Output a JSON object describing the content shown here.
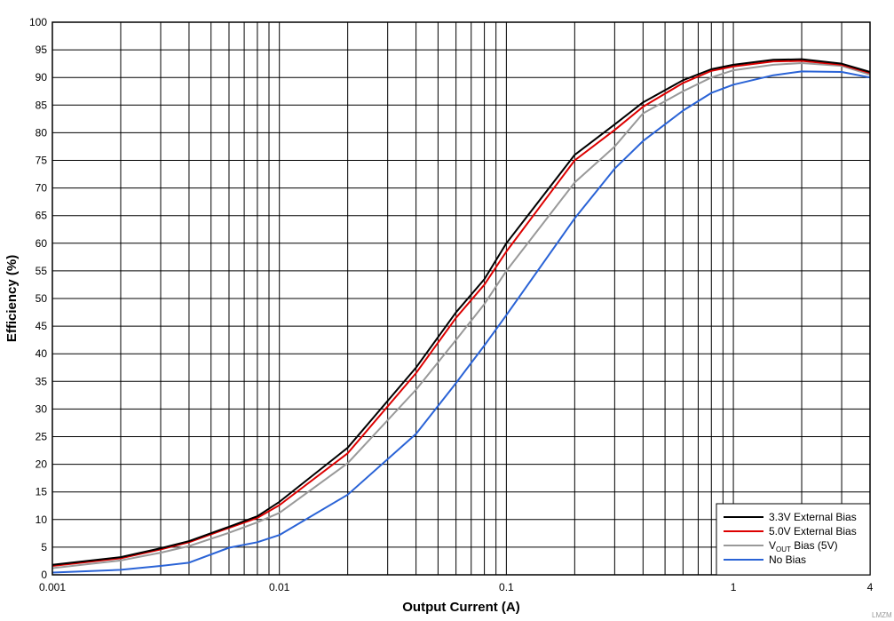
{
  "chart_data": {
    "type": "line",
    "xlabel": "Output Current (A)",
    "ylabel": "Efficiency (%)",
    "x_scale": "log",
    "xlim": [
      0.001,
      4
    ],
    "ylim": [
      0,
      100
    ],
    "x_ticks": [
      0.001,
      0.01,
      0.1,
      1,
      4
    ],
    "x_tick_labels": [
      "0.001",
      "0.01",
      "0.1",
      "1",
      "4"
    ],
    "y_ticks": [
      0,
      5,
      10,
      15,
      20,
      25,
      30,
      35,
      40,
      45,
      50,
      55,
      60,
      65,
      70,
      75,
      80,
      85,
      90,
      95,
      100
    ],
    "grid": true,
    "legend_position": "bottom-right",
    "watermark": "LMZM",
    "series": [
      {
        "name": "3.3V External Bias",
        "legend_main": "3.3V External Bias",
        "color": "#000000",
        "x": [
          0.001,
          0.002,
          0.003,
          0.004,
          0.006,
          0.008,
          0.01,
          0.02,
          0.04,
          0.06,
          0.08,
          0.1,
          0.2,
          0.3,
          0.4,
          0.6,
          0.8,
          1,
          1.5,
          2,
          3,
          4
        ],
        "y": [
          1.8,
          3.2,
          4.8,
          6.1,
          8.7,
          10.6,
          13.2,
          23,
          37.5,
          47.5,
          53.5,
          60,
          76,
          81.5,
          85.5,
          89.5,
          91.5,
          92.3,
          93.2,
          93.3,
          92.5,
          91
        ]
      },
      {
        "name": "5.0V External Bias",
        "legend_main": "5.0V External Bias",
        "color": "#dd0000",
        "x": [
          0.001,
          0.002,
          0.003,
          0.004,
          0.006,
          0.008,
          0.01,
          0.02,
          0.04,
          0.06,
          0.08,
          0.1,
          0.2,
          0.3,
          0.4,
          0.6,
          0.8,
          1,
          1.5,
          2,
          3,
          4
        ],
        "y": [
          1.6,
          3.0,
          4.6,
          5.9,
          8.5,
          10.3,
          12.6,
          22,
          36.5,
          46.5,
          52.5,
          58.5,
          75,
          80.5,
          84.7,
          89,
          91.2,
          92,
          92.9,
          93,
          92.3,
          90.8
        ]
      },
      {
        "name": "VOUT Bias (5V)",
        "legend_main": "V",
        "legend_sub": "OUT",
        "legend_rest": " Bias (5V)",
        "color": "#999999",
        "x": [
          0.001,
          0.002,
          0.003,
          0.004,
          0.006,
          0.008,
          0.01,
          0.02,
          0.04,
          0.06,
          0.08,
          0.1,
          0.2,
          0.3,
          0.4,
          0.6,
          0.8,
          1,
          1.5,
          2,
          3,
          4
        ],
        "y": [
          1.2,
          2.6,
          4.0,
          5.2,
          7.6,
          9.5,
          11.2,
          20.2,
          33.5,
          42.5,
          49,
          55,
          71,
          77.5,
          83.5,
          87.5,
          90,
          91.3,
          92.3,
          92.6,
          92.1,
          90.5
        ]
      },
      {
        "name": "No Bias",
        "legend_main": "No Bias",
        "color": "#2a63d6",
        "x": [
          0.001,
          0.002,
          0.003,
          0.004,
          0.006,
          0.008,
          0.01,
          0.02,
          0.04,
          0.06,
          0.08,
          0.1,
          0.2,
          0.3,
          0.4,
          0.6,
          0.8,
          1,
          1.5,
          2,
          3,
          4
        ],
        "y": [
          0.4,
          0.9,
          1.6,
          2.2,
          4.9,
          5.9,
          7.2,
          14.5,
          25.5,
          34.7,
          41.5,
          47,
          64.5,
          73.5,
          78.5,
          84,
          87.2,
          88.7,
          90.4,
          91.1,
          91,
          90
        ]
      }
    ]
  }
}
